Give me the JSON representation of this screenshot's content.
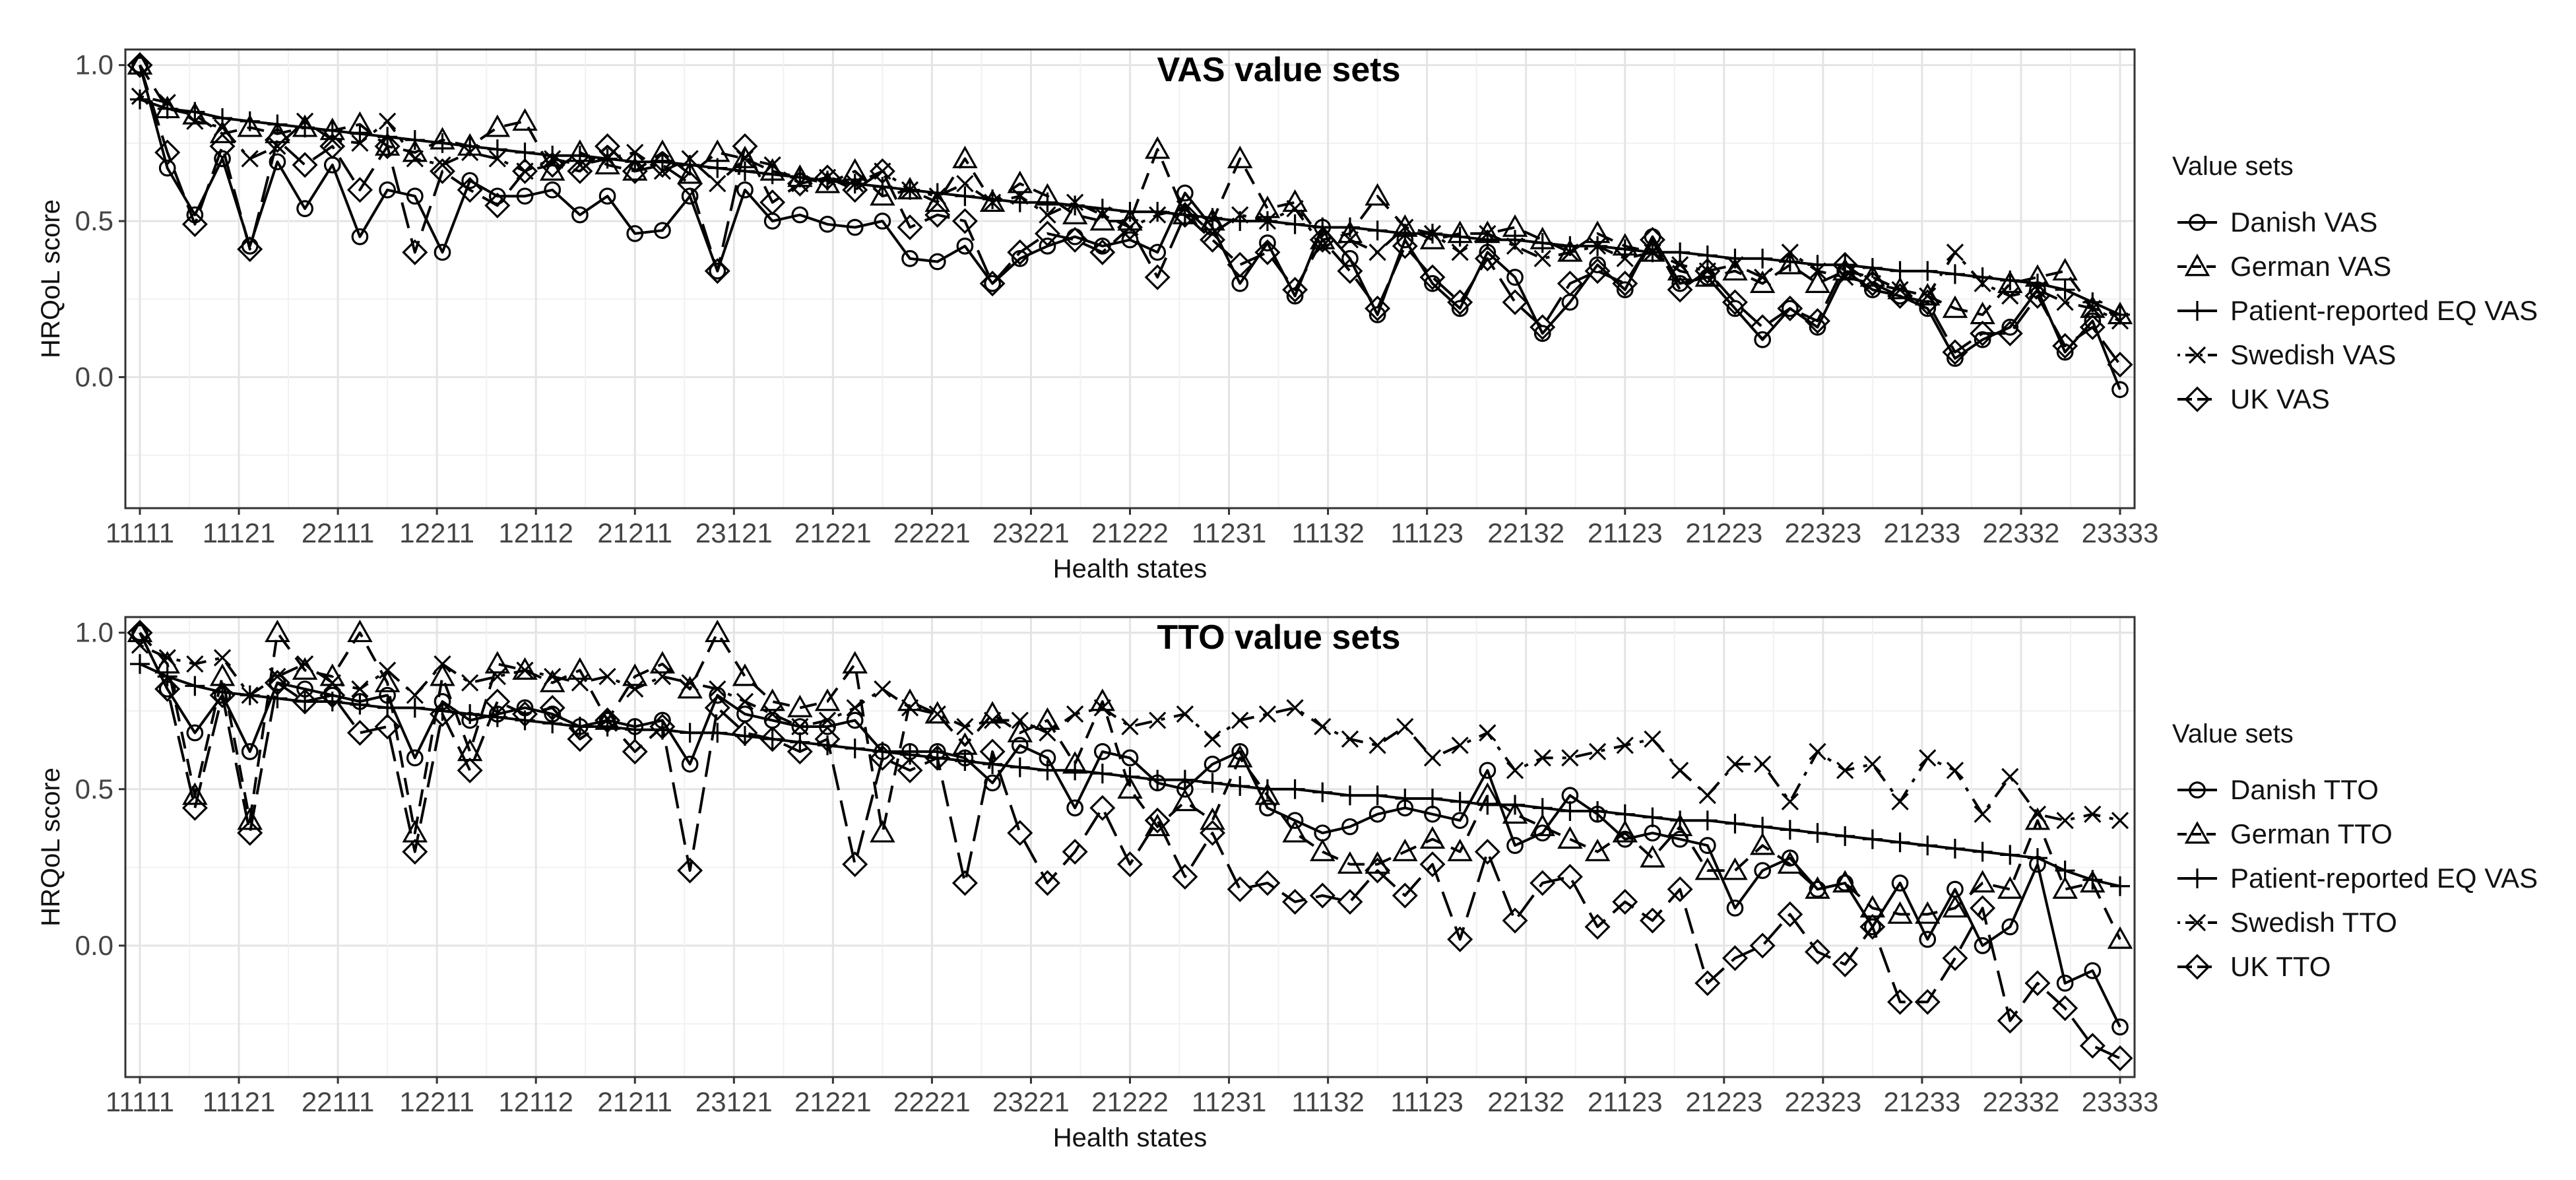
{
  "chart_data": [
    {
      "type": "line",
      "title": "VAS value sets",
      "xlabel": "Health states",
      "ylabel": "HRQoL score",
      "ylim": [
        -0.42,
        1.05
      ],
      "yticks": [
        0.0,
        0.5,
        1.0
      ],
      "ytick_labels": [
        "0.0",
        "0.5",
        "1.0"
      ],
      "xtick_labels": [
        "11111",
        "11121",
        "22111",
        "12211",
        "12112",
        "21211",
        "23121",
        "21221",
        "22221",
        "23221",
        "21222",
        "11231",
        "11132",
        "11123",
        "22132",
        "21123",
        "21223",
        "22323",
        "21233",
        "22332",
        "23333"
      ],
      "grid": true,
      "legend": {
        "title": "Value sets",
        "position": "right",
        "entries": [
          "Danish VAS",
          "German VAS",
          "Patient-reported EQ VAS",
          "Swedish VAS",
          "UK VAS"
        ]
      },
      "series": [
        {
          "name": "Danish VAS",
          "marker": "circle",
          "dash": "solid",
          "values": [
            1.0,
            0.67,
            0.52,
            0.7,
            0.42,
            0.69,
            0.54,
            0.68,
            0.45,
            0.6,
            0.58,
            0.4,
            0.63,
            0.58,
            0.58,
            0.6,
            0.52,
            0.58,
            0.46,
            0.47,
            0.58,
            0.34,
            0.6,
            0.5,
            0.52,
            0.49,
            0.48,
            0.5,
            0.38,
            0.37,
            0.42,
            0.3,
            0.38,
            0.42,
            0.45,
            0.42,
            0.44,
            0.4,
            0.59,
            0.48,
            0.3,
            0.43,
            0.26,
            0.48,
            0.38,
            0.2,
            0.44,
            0.3,
            0.22,
            0.4,
            0.32,
            0.14,
            0.24,
            0.36,
            0.28,
            0.45,
            0.3,
            0.32,
            0.22,
            0.12,
            0.22,
            0.16,
            0.34,
            0.28,
            0.26,
            0.22,
            0.06,
            0.12,
            0.16,
            0.28,
            0.08,
            0.18,
            -0.04
          ]
        },
        {
          "name": "German VAS",
          "marker": "triangle",
          "dash": "dashed",
          "values": [
            1.0,
            0.86,
            0.84,
            0.78,
            0.8,
            0.78,
            0.8,
            0.79,
            0.81,
            0.74,
            0.72,
            0.76,
            0.74,
            0.8,
            0.82,
            0.66,
            0.72,
            0.68,
            0.66,
            0.72,
            0.65,
            0.72,
            0.7,
            0.66,
            0.64,
            0.62,
            0.66,
            0.58,
            0.6,
            0.56,
            0.7,
            0.56,
            0.62,
            0.58,
            0.52,
            0.5,
            0.5,
            0.73,
            0.52,
            0.5,
            0.7,
            0.54,
            0.56,
            0.44,
            0.46,
            0.58,
            0.48,
            0.44,
            0.46,
            0.46,
            0.48,
            0.44,
            0.4,
            0.46,
            0.42,
            0.4,
            0.34,
            0.32,
            0.34,
            0.3,
            0.36,
            0.3,
            0.34,
            0.32,
            0.28,
            0.26,
            0.22,
            0.2,
            0.3,
            0.32,
            0.34,
            0.22,
            0.2
          ]
        },
        {
          "name": "Patient-reported EQ VAS",
          "marker": "plus",
          "dash": "solid",
          "values": [
            0.89,
            0.86,
            0.85,
            0.83,
            0.82,
            0.81,
            0.8,
            0.79,
            0.78,
            0.77,
            0.76,
            0.75,
            0.74,
            0.73,
            0.72,
            0.71,
            0.71,
            0.7,
            0.69,
            0.69,
            0.68,
            0.67,
            0.66,
            0.65,
            0.64,
            0.63,
            0.62,
            0.61,
            0.6,
            0.59,
            0.58,
            0.57,
            0.56,
            0.56,
            0.55,
            0.54,
            0.53,
            0.53,
            0.52,
            0.51,
            0.5,
            0.5,
            0.49,
            0.48,
            0.48,
            0.47,
            0.46,
            0.46,
            0.45,
            0.44,
            0.44,
            0.43,
            0.42,
            0.42,
            0.41,
            0.4,
            0.4,
            0.39,
            0.38,
            0.38,
            0.37,
            0.36,
            0.36,
            0.35,
            0.34,
            0.34,
            0.33,
            0.32,
            0.31,
            0.3,
            0.28,
            0.24,
            0.2
          ]
        },
        {
          "name": "Swedish VAS",
          "marker": "cross",
          "dash": "dotdash",
          "values": [
            0.9,
            0.88,
            0.82,
            0.8,
            0.7,
            0.74,
            0.82,
            0.76,
            0.75,
            0.82,
            0.7,
            0.68,
            0.72,
            0.7,
            0.66,
            0.7,
            0.68,
            0.7,
            0.72,
            0.66,
            0.7,
            0.62,
            0.7,
            0.68,
            0.62,
            0.64,
            0.62,
            0.66,
            0.6,
            0.58,
            0.62,
            0.56,
            0.58,
            0.52,
            0.56,
            0.52,
            0.48,
            0.52,
            0.54,
            0.46,
            0.52,
            0.5,
            0.54,
            0.42,
            0.44,
            0.4,
            0.48,
            0.46,
            0.4,
            0.46,
            0.42,
            0.38,
            0.4,
            0.42,
            0.38,
            0.4,
            0.36,
            0.34,
            0.36,
            0.32,
            0.4,
            0.34,
            0.32,
            0.3,
            0.28,
            0.26,
            0.4,
            0.3,
            0.26,
            0.28,
            0.24,
            0.22,
            0.18
          ]
        },
        {
          "name": "UK VAS",
          "marker": "diamond",
          "dash": "longdash",
          "values": [
            1.0,
            0.72,
            0.49,
            0.74,
            0.41,
            0.76,
            0.68,
            0.74,
            0.6,
            0.74,
            0.4,
            0.66,
            0.6,
            0.55,
            0.66,
            0.68,
            0.66,
            0.74,
            0.66,
            0.68,
            0.62,
            0.34,
            0.74,
            0.56,
            0.62,
            0.64,
            0.6,
            0.66,
            0.48,
            0.52,
            0.5,
            0.3,
            0.4,
            0.46,
            0.44,
            0.4,
            0.48,
            0.32,
            0.52,
            0.44,
            0.36,
            0.4,
            0.28,
            0.44,
            0.34,
            0.22,
            0.42,
            0.32,
            0.24,
            0.38,
            0.24,
            0.16,
            0.3,
            0.34,
            0.3,
            0.44,
            0.28,
            0.34,
            0.24,
            0.16,
            0.22,
            0.18,
            0.36,
            0.3,
            0.26,
            0.24,
            0.08,
            0.14,
            0.14,
            0.26,
            0.1,
            0.16,
            0.04
          ]
        }
      ]
    },
    {
      "type": "line",
      "title": "TTO value sets",
      "xlabel": "Health states",
      "ylabel": "HRQoL score",
      "ylim": [
        -0.42,
        1.05
      ],
      "yticks": [
        0.0,
        0.5,
        1.0
      ],
      "ytick_labels": [
        "0.0",
        "0.5",
        "1.0"
      ],
      "xtick_labels": [
        "11111",
        "11121",
        "22111",
        "12211",
        "12112",
        "21211",
        "23121",
        "21221",
        "22221",
        "23221",
        "21222",
        "11231",
        "11132",
        "11123",
        "22132",
        "21123",
        "21223",
        "22323",
        "21233",
        "22332",
        "23333"
      ],
      "grid": true,
      "legend": {
        "title": "Value sets",
        "position": "right",
        "entries": [
          "Danish TTO",
          "German TTO",
          "Patient-reported EQ VAS",
          "Swedish TTO",
          "UK TTO"
        ]
      },
      "series": [
        {
          "name": "Danish TTO",
          "marker": "circle",
          "dash": "solid",
          "values": [
            1.0,
            0.82,
            0.68,
            0.8,
            0.62,
            0.84,
            0.82,
            0.8,
            0.78,
            0.8,
            0.6,
            0.78,
            0.72,
            0.74,
            0.76,
            0.74,
            0.7,
            0.72,
            0.7,
            0.72,
            0.58,
            0.8,
            0.74,
            0.72,
            0.7,
            0.7,
            0.72,
            0.62,
            0.62,
            0.62,
            0.6,
            0.52,
            0.64,
            0.6,
            0.44,
            0.62,
            0.6,
            0.52,
            0.5,
            0.58,
            0.62,
            0.44,
            0.4,
            0.36,
            0.38,
            0.42,
            0.44,
            0.42,
            0.4,
            0.56,
            0.32,
            0.36,
            0.48,
            0.42,
            0.34,
            0.36,
            0.34,
            0.32,
            0.12,
            0.24,
            0.28,
            0.18,
            0.2,
            0.06,
            0.2,
            0.02,
            0.18,
            0.0,
            0.06,
            0.26,
            -0.12,
            -0.08,
            -0.26
          ]
        },
        {
          "name": "German TTO",
          "marker": "triangle",
          "dash": "dashed",
          "values": [
            1.0,
            0.9,
            0.48,
            0.86,
            0.4,
            1.0,
            0.88,
            0.86,
            1.0,
            0.84,
            0.36,
            0.86,
            0.62,
            0.9,
            0.88,
            0.84,
            0.88,
            0.72,
            0.86,
            0.9,
            0.82,
            1.0,
            0.86,
            0.78,
            0.76,
            0.78,
            0.9,
            0.36,
            0.78,
            0.74,
            0.64,
            0.74,
            0.68,
            0.72,
            0.58,
            0.78,
            0.5,
            0.38,
            0.46,
            0.4,
            0.6,
            0.48,
            0.36,
            0.3,
            0.26,
            0.26,
            0.3,
            0.34,
            0.3,
            0.48,
            0.42,
            0.38,
            0.34,
            0.3,
            0.36,
            0.28,
            0.38,
            0.24,
            0.24,
            0.32,
            0.26,
            0.18,
            0.2,
            0.12,
            0.1,
            0.1,
            0.12,
            0.2,
            0.18,
            0.4,
            0.18,
            0.2,
            0.02
          ]
        },
        {
          "name": "Patient-reported EQ VAS",
          "marker": "plus",
          "dash": "solid",
          "values": [
            0.9,
            0.86,
            0.83,
            0.81,
            0.8,
            0.79,
            0.78,
            0.78,
            0.77,
            0.76,
            0.76,
            0.75,
            0.74,
            0.73,
            0.72,
            0.71,
            0.7,
            0.7,
            0.69,
            0.69,
            0.68,
            0.68,
            0.67,
            0.66,
            0.65,
            0.64,
            0.63,
            0.62,
            0.61,
            0.6,
            0.59,
            0.58,
            0.57,
            0.56,
            0.56,
            0.55,
            0.54,
            0.53,
            0.53,
            0.52,
            0.51,
            0.5,
            0.5,
            0.49,
            0.48,
            0.48,
            0.47,
            0.47,
            0.46,
            0.45,
            0.45,
            0.44,
            0.43,
            0.43,
            0.42,
            0.41,
            0.4,
            0.4,
            0.39,
            0.38,
            0.37,
            0.36,
            0.35,
            0.34,
            0.33,
            0.32,
            0.31,
            0.3,
            0.29,
            0.28,
            0.24,
            0.21,
            0.19
          ]
        },
        {
          "name": "Swedish TTO",
          "marker": "cross",
          "dash": "dotdash",
          "values": [
            0.96,
            0.92,
            0.9,
            0.92,
            0.8,
            0.86,
            0.9,
            0.84,
            0.82,
            0.88,
            0.8,
            0.9,
            0.84,
            0.86,
            0.88,
            0.86,
            0.84,
            0.86,
            0.82,
            0.86,
            0.84,
            0.82,
            0.78,
            0.74,
            0.7,
            0.72,
            0.76,
            0.82,
            0.76,
            0.74,
            0.7,
            0.72,
            0.72,
            0.68,
            0.74,
            0.76,
            0.7,
            0.72,
            0.74,
            0.66,
            0.72,
            0.74,
            0.76,
            0.7,
            0.66,
            0.64,
            0.7,
            0.6,
            0.64,
            0.68,
            0.56,
            0.6,
            0.6,
            0.62,
            0.64,
            0.66,
            0.56,
            0.48,
            0.58,
            0.58,
            0.46,
            0.62,
            0.56,
            0.58,
            0.46,
            0.6,
            0.56,
            0.42,
            0.54,
            0.42,
            0.4,
            0.42,
            0.4
          ]
        },
        {
          "name": "UK TTO",
          "marker": "diamond",
          "dash": "longdash",
          "values": [
            1.0,
            0.82,
            0.44,
            0.8,
            0.36,
            0.84,
            0.78,
            0.8,
            0.68,
            0.7,
            0.3,
            0.74,
            0.56,
            0.78,
            0.74,
            0.76,
            0.66,
            0.72,
            0.62,
            0.7,
            0.24,
            0.76,
            0.68,
            0.66,
            0.62,
            0.66,
            0.26,
            0.6,
            0.56,
            0.6,
            0.2,
            0.62,
            0.36,
            0.2,
            0.3,
            0.44,
            0.26,
            0.4,
            0.22,
            0.36,
            0.18,
            0.2,
            0.14,
            0.16,
            0.14,
            0.24,
            0.16,
            0.26,
            0.02,
            0.3,
            0.08,
            0.2,
            0.22,
            0.06,
            0.14,
            0.08,
            0.18,
            -0.12,
            -0.04,
            0.0,
            0.1,
            -0.02,
            -0.06,
            0.06,
            -0.18,
            -0.18,
            -0.04,
            0.12,
            -0.24,
            -0.12,
            -0.2,
            -0.32,
            -0.36
          ]
        }
      ]
    }
  ]
}
